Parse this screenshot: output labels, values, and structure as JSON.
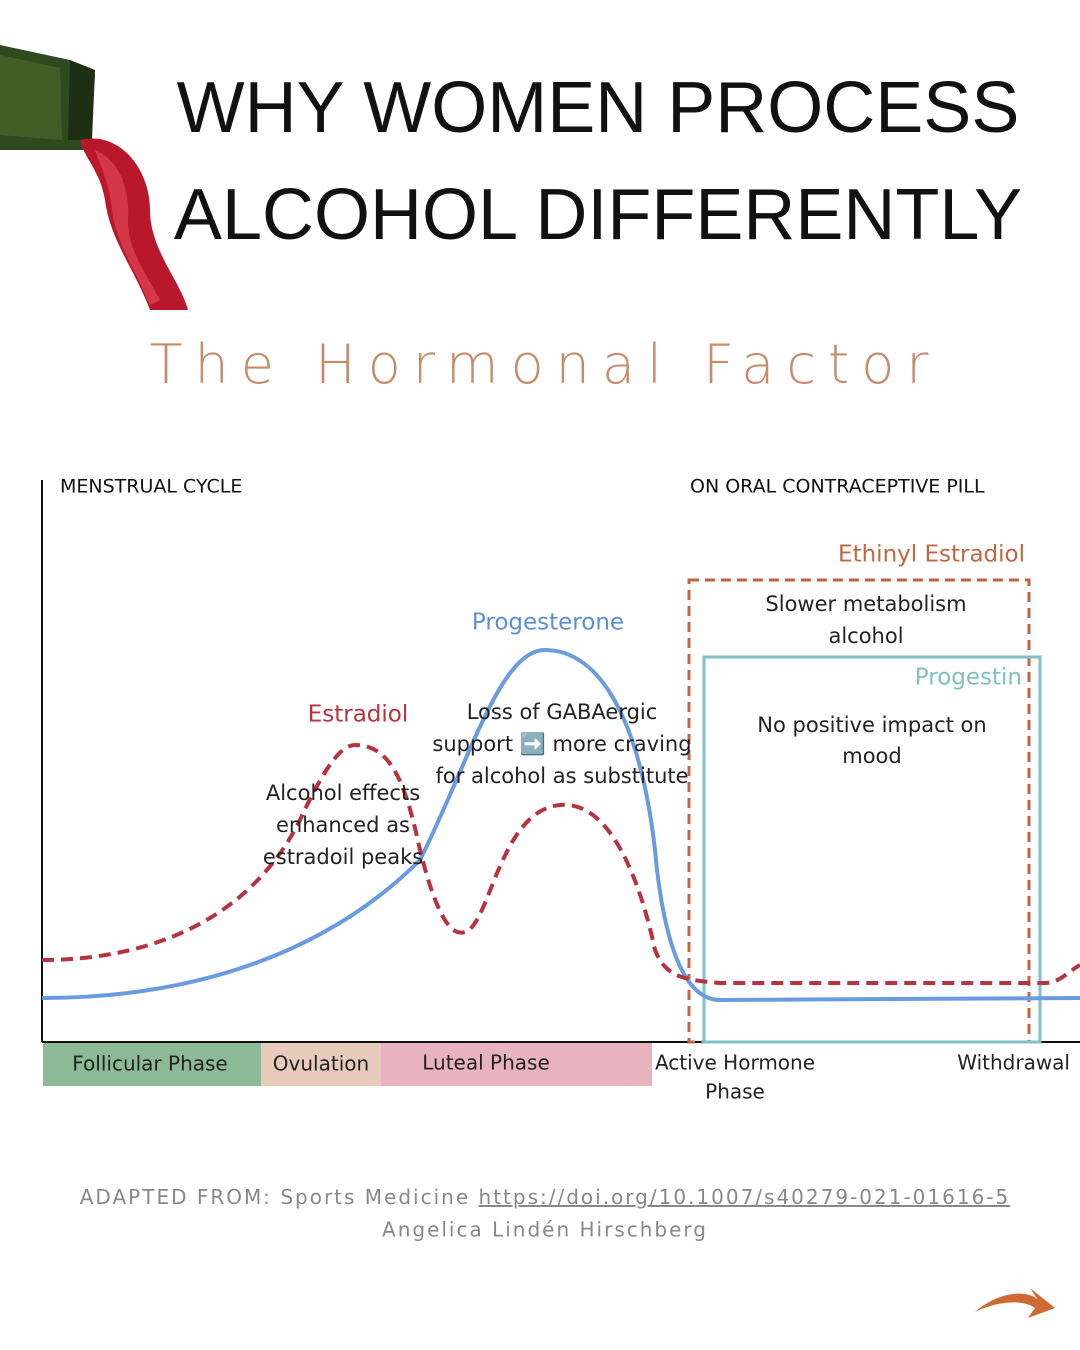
{
  "header": {
    "title_lines": [
      "WHY WOMEN PROCESS",
      "ALCOHOL DIFFERENTLY"
    ],
    "subtitle": "The Hormonal Factor"
  },
  "diagram": {
    "left_heading": "MENSTRUAL CYCLE",
    "right_heading": "ON ORAL CONTRACEPTIVE PILL",
    "curve_labels": {
      "estradiol": "Estradiol",
      "progesterone": "Progesterone",
      "ethinyl_estradiol": "Ethinyl Estradiol",
      "progestin": "Progestin"
    },
    "annotations": [
      [
        "Alcohol effects",
        "enhanced as",
        "estradoil peaks"
      ],
      [
        "Loss of GABAergic",
        "support ➡️ more craving",
        "for alcohol as substitute"
      ],
      [
        "Slower metabolism",
        "alcohol"
      ],
      [
        "No positive impact on",
        "mood"
      ]
    ],
    "phases": [
      [
        "Follicular Phase"
      ],
      [
        "Ovulation"
      ],
      [
        "Luteal Phase"
      ],
      [
        "Active Hormone",
        "Phase"
      ],
      [
        "Withdrawal"
      ]
    ]
  },
  "footer": {
    "source_prefix": "ADAPTED FROM: Sports Medicine",
    "link": "https://doi.org/10.1007/s40279-021-01616-5",
    "author": "Angelica Lindén Hirschberg"
  }
}
